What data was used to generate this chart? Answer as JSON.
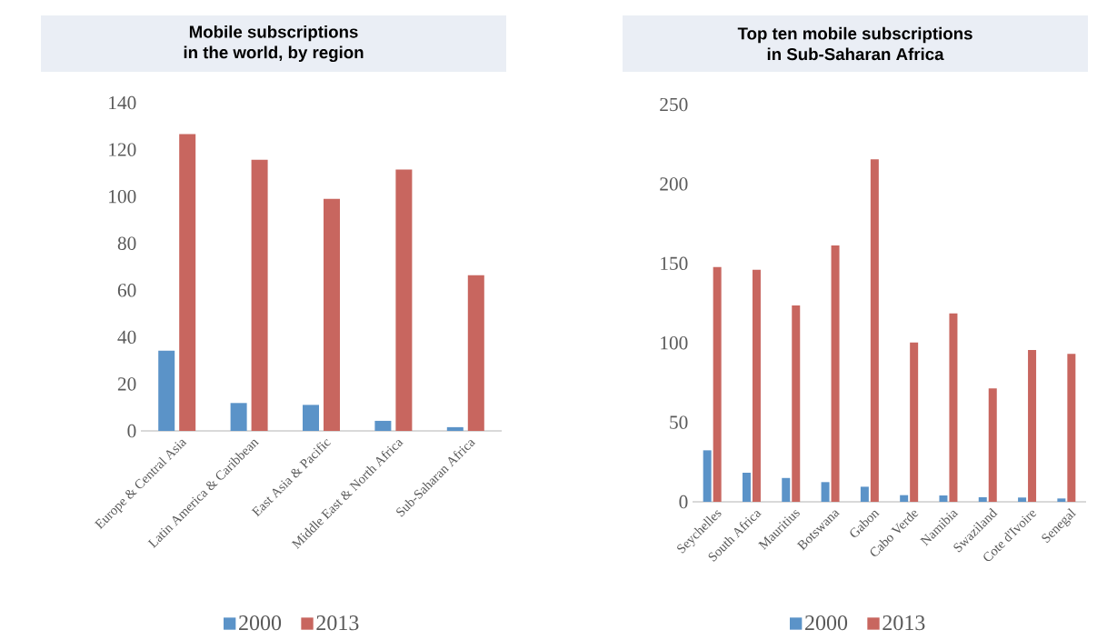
{
  "chart_data": [
    {
      "type": "bar",
      "title": "Mobile subscriptions\nin the world, by region",
      "categories": [
        "Europe & Central Asia",
        "Latin America & Caribbean",
        "East Asia & Pacific",
        "Middle East & North Africa",
        "Sub-Saharan Africa"
      ],
      "series": [
        {
          "name": "2000",
          "color": "#5b93c8",
          "values": [
            34.2,
            11.9,
            11.1,
            4.3,
            1.6
          ]
        },
        {
          "name": "2013",
          "color": "#c8665f",
          "values": [
            126.6,
            115.7,
            99.0,
            111.5,
            66.4
          ]
        }
      ],
      "ylim": [
        0,
        140
      ],
      "yticks": [
        0,
        20,
        40,
        60,
        80,
        100,
        120,
        140
      ],
      "legend": "bottom"
    },
    {
      "type": "bar",
      "title": "Top ten mobile subscriptions\nin Sub-Saharan Africa",
      "categories": [
        "Seychelles",
        "South Africa",
        "Mauritius",
        "Botswana",
        "Gabon",
        "Cabo Verde",
        "Namibia",
        "Swaziland",
        "Cote d'Ivoire",
        "Senegal"
      ],
      "series": [
        {
          "name": "2000",
          "color": "#5b93c8",
          "values": [
            32.4,
            18.3,
            15.0,
            12.4,
            9.5,
            4.2,
            4.0,
            2.9,
            2.7,
            2.1
          ]
        },
        {
          "name": "2013",
          "color": "#c8665f",
          "values": [
            147.8,
            146.0,
            123.6,
            161.3,
            215.5,
            100.3,
            118.6,
            71.4,
            95.6,
            93.1
          ]
        }
      ],
      "ylim": [
        0,
        250
      ],
      "yticks": [
        0,
        50,
        100,
        150,
        200,
        250
      ],
      "legend": "bottom"
    }
  ]
}
